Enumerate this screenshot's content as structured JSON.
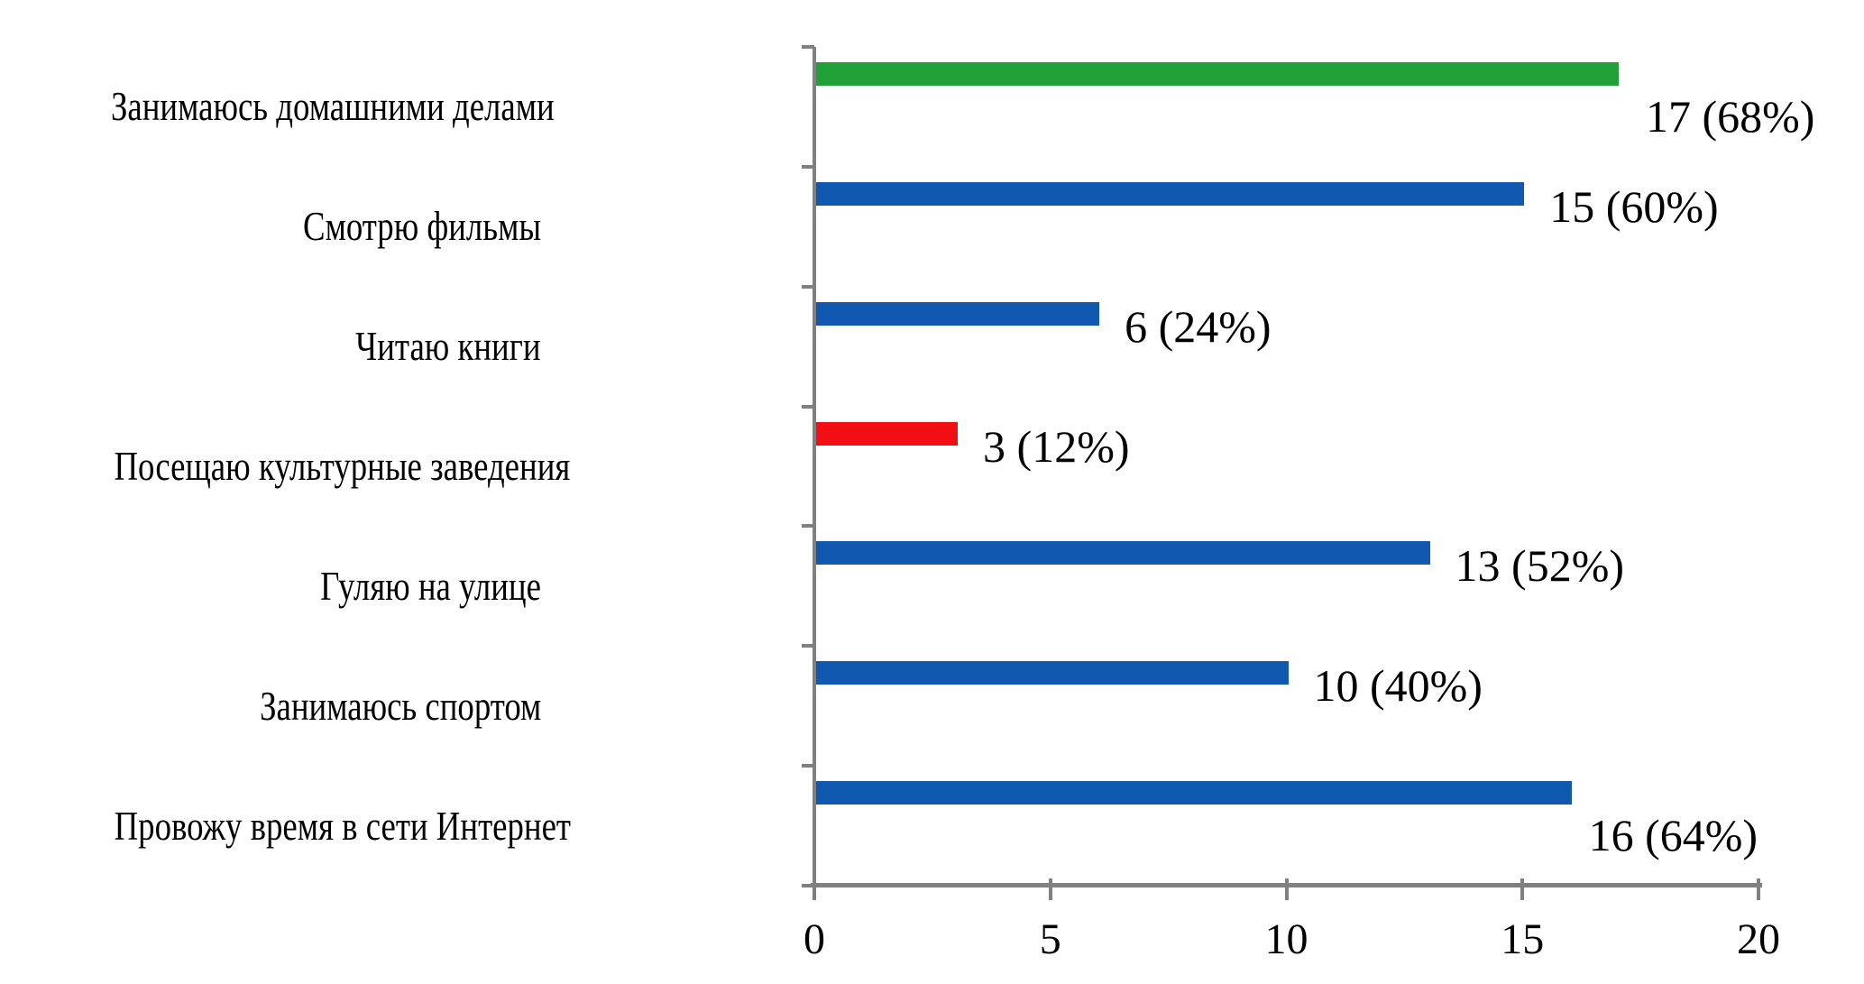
{
  "chart_data": {
    "type": "bar",
    "orientation": "horizontal",
    "title": "",
    "xlabel": "",
    "ylabel": "",
    "categories": [
      "Занимаюсь домашними делами",
      "Смотрю фильмы",
      "Читаю книги",
      "Посещаю культурные заведения",
      "Гуляю на улице",
      "Занимаюсь спортом",
      "Провожу время в сети Интернет"
    ],
    "values": [
      17,
      15,
      6,
      3,
      13,
      10,
      16
    ],
    "percentages": [
      68,
      60,
      24,
      12,
      52,
      40,
      64
    ],
    "data_labels": [
      "17 (68%)",
      "15 (60%)",
      "6 (24%)",
      "3 (12%)",
      "13 (52%)",
      "10 (40%)",
      "16 (64%)"
    ],
    "bar_colors": [
      "#21A038",
      "#1159B0",
      "#1159B0",
      "#F20F14",
      "#1159B0",
      "#1159B0",
      "#1159B0"
    ],
    "x_ticks": [
      "0",
      "5",
      "10",
      "15",
      "20"
    ],
    "x_tick_values": [
      0,
      5,
      10,
      15,
      20
    ],
    "xlim": [
      0,
      20
    ],
    "grid": false,
    "legend": false,
    "axis_color": "#808080",
    "text_color": "#000000",
    "background_color": "#FFFFFF"
  }
}
